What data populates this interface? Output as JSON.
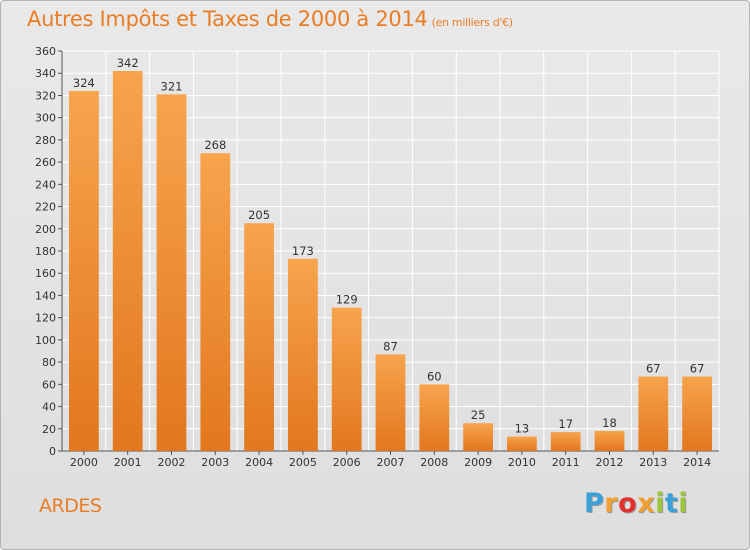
{
  "title": "Autres Impôts et Taxes de 2000 à 2014",
  "title_unit": "(en milliers d'€)",
  "place": "ARDES",
  "logo": {
    "text": "Proxiti",
    "letters": [
      "P",
      "r",
      "o",
      "x",
      "i",
      "t",
      "i"
    ]
  },
  "colors": {
    "bar": "#f08a2c",
    "bar_light": "#f8a850",
    "text_accent": "#ea7d24",
    "grid": "#ffffff"
  },
  "chart_data": {
    "type": "bar",
    "title": "Autres Impôts et Taxes de 2000 à 2014",
    "subtitle": "(en milliers d'€)",
    "categories": [
      "2000",
      "2001",
      "2002",
      "2003",
      "2004",
      "2005",
      "2006",
      "2007",
      "2008",
      "2009",
      "2010",
      "2011",
      "2012",
      "2013",
      "2014"
    ],
    "values": [
      324,
      342,
      321,
      268,
      205,
      173,
      129,
      87,
      60,
      25,
      13,
      17,
      18,
      67,
      67
    ],
    "ylim": [
      0,
      360
    ],
    "yticks": [
      0,
      20,
      40,
      60,
      80,
      100,
      120,
      140,
      160,
      180,
      200,
      220,
      240,
      260,
      280,
      300,
      320,
      340,
      360
    ],
    "grid": true,
    "legend": "none"
  }
}
